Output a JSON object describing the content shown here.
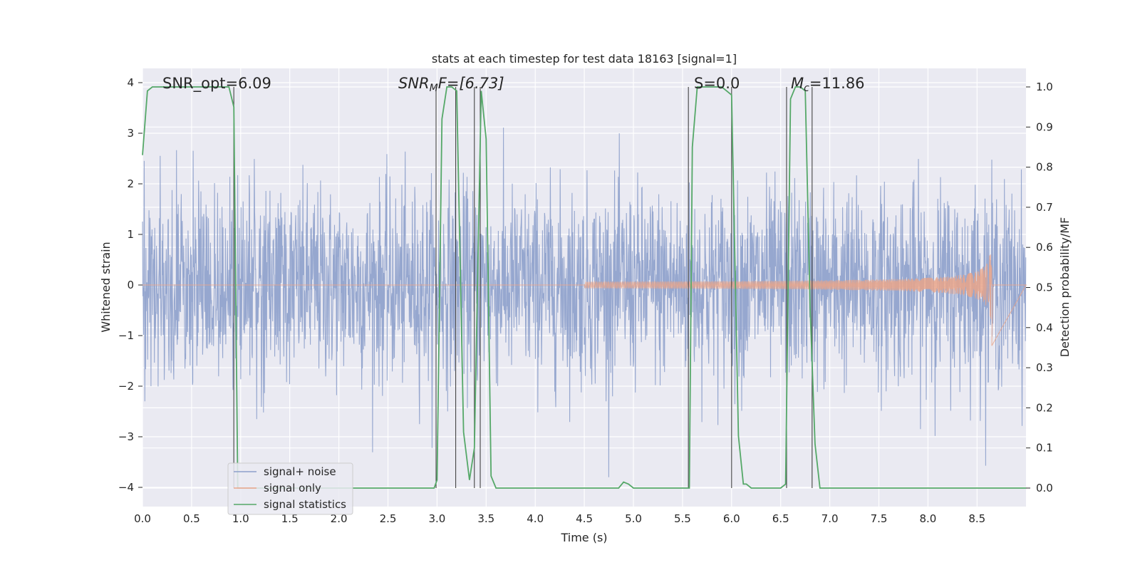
{
  "chart_data": {
    "type": "line",
    "title": "stats at each timestep for test data 18163 [signal=1]",
    "xlabel": "Time (s)",
    "ylabel": "Whitened strain",
    "ylabel_right": "Detection probability/MF",
    "xlim": [
      0.0,
      9.0
    ],
    "ylim": [
      -4.4,
      4.3
    ],
    "ylim_right": [
      -0.05,
      1.04
    ],
    "x_ticks": [
      "0.0",
      "0.5",
      "1.0",
      "1.5",
      "2.0",
      "2.5",
      "3.0",
      "3.5",
      "4.0",
      "4.5",
      "5.0",
      "5.5",
      "6.0",
      "6.5",
      "7.0",
      "7.5",
      "8.0",
      "8.5"
    ],
    "y_ticks": [
      "−4",
      "−3",
      "−2",
      "−1",
      "0",
      "1",
      "2",
      "3",
      "4"
    ],
    "y_ticks_right": [
      "0.0",
      "0.1",
      "0.2",
      "0.3",
      "0.4",
      "0.5",
      "0.6",
      "0.7",
      "0.8",
      "0.9",
      "1.0"
    ],
    "grid": true,
    "legend_position": "lower-left",
    "annotations": {
      "snr_opt": "SNR_opt=6.09",
      "snr_mf_prefix": "SNR",
      "snr_mf_sub": "M",
      "snr_mf_suffix": "F=[6.73]",
      "s_stat": "S=0.0",
      "mc_prefix": "M",
      "mc_sub": "c",
      "mc_suffix": "=11.86"
    },
    "series": [
      {
        "name": "signal+ noise",
        "color": "#8da0cb",
        "kind": "noise",
        "axis": "left",
        "envelope_typical": 2.0,
        "envelope_peak": 3.8
      },
      {
        "name": "signal only",
        "color": "#e9a58a",
        "kind": "chirp",
        "axis": "left",
        "onset": 4.5,
        "merger": 8.65,
        "peak_amplitude": 0.85,
        "min_at_merger": -1.2
      },
      {
        "name": "signal statistics",
        "color": "#55a868",
        "axis": "right",
        "x": [
          0.0,
          0.05,
          0.1,
          0.2,
          0.3,
          0.4,
          0.5,
          0.6,
          0.7,
          0.8,
          0.88,
          0.93,
          0.97,
          1.0,
          1.05,
          1.1,
          1.5,
          2.0,
          2.5,
          2.9,
          2.97,
          3.0,
          3.05,
          3.1,
          3.15,
          3.2,
          3.27,
          3.33,
          3.38,
          3.45,
          3.5,
          3.55,
          3.6,
          3.65,
          4.0,
          4.5,
          4.85,
          4.9,
          4.95,
          5.0,
          5.05,
          5.1,
          5.5,
          5.57,
          5.6,
          5.65,
          5.7,
          5.8,
          5.9,
          6.0,
          6.07,
          6.12,
          6.15,
          6.2,
          6.3,
          6.4,
          6.5,
          6.55,
          6.6,
          6.65,
          6.7,
          6.75,
          6.8,
          6.85,
          6.9,
          6.95,
          7.5,
          8.0,
          8.5,
          9.0
        ],
        "y": [
          0.83,
          0.99,
          1.0,
          1.0,
          1.0,
          1.0,
          1.0,
          1.0,
          1.0,
          1.0,
          1.0,
          0.95,
          0.0,
          0.0,
          0.0,
          0.0,
          0.0,
          0.0,
          0.0,
          0.0,
          0.0,
          0.02,
          0.92,
          1.0,
          1.0,
          0.99,
          0.14,
          0.02,
          0.1,
          0.99,
          0.87,
          0.03,
          0.0,
          0.0,
          0.0,
          0.0,
          0.0,
          0.015,
          0.01,
          0.0,
          0.0,
          0.0,
          0.0,
          0.0,
          0.85,
          1.0,
          1.0,
          1.0,
          1.0,
          0.98,
          0.13,
          0.01,
          0.01,
          0.0,
          0.0,
          0.0,
          0.0,
          0.01,
          0.97,
          1.0,
          1.0,
          0.99,
          0.45,
          0.11,
          0.0,
          0.0,
          0.0,
          0.0,
          0.0,
          0.0
        ]
      }
    ],
    "threshold_lines_x": [
      0.93,
      2.99,
      3.19,
      3.38,
      3.44,
      5.56,
      6.0,
      6.56,
      6.82
    ]
  }
}
